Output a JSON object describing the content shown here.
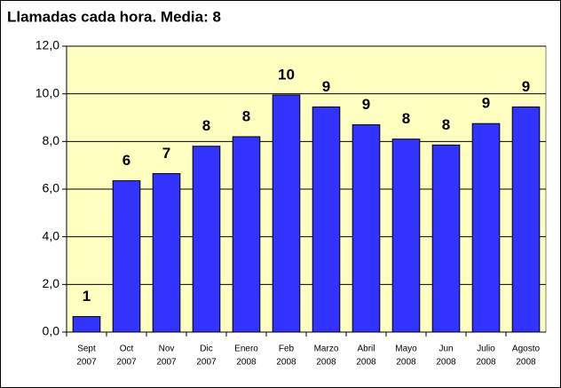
{
  "chart_data": {
    "type": "bar",
    "title": "Llamadas cada hora. Media: 8",
    "categories": [
      [
        "Sept",
        "2007"
      ],
      [
        "Oct",
        "2007"
      ],
      [
        "Nov",
        "2007"
      ],
      [
        "Dic",
        "2007"
      ],
      [
        "Enero",
        "2008"
      ],
      [
        "Feb",
        "2008"
      ],
      [
        "Marzo",
        "2008"
      ],
      [
        "Abril",
        "2008"
      ],
      [
        "Mayo",
        "2008"
      ],
      [
        "Jun",
        "2008"
      ],
      [
        "Julio",
        "2008"
      ],
      [
        "Agosto",
        "2008"
      ]
    ],
    "values": [
      0.65,
      6.35,
      6.65,
      7.8,
      8.2,
      9.95,
      9.45,
      8.7,
      8.1,
      7.85,
      8.75,
      9.45
    ],
    "value_labels": [
      "1",
      "6",
      "7",
      "8",
      "8",
      "10",
      "9",
      "9",
      "8",
      "8",
      "9",
      "9"
    ],
    "color": "#3333ff",
    "ylim": [
      0,
      12
    ],
    "yticks": [
      {
        "value": 0,
        "label": "0,0"
      },
      {
        "value": 2,
        "label": "2,0"
      },
      {
        "value": 4,
        "label": "4,0"
      },
      {
        "value": 6,
        "label": "6,0"
      },
      {
        "value": 8,
        "label": "8,0"
      },
      {
        "value": 10,
        "label": "10,0"
      },
      {
        "value": 12,
        "label": "12,0"
      }
    ],
    "grid": true
  }
}
